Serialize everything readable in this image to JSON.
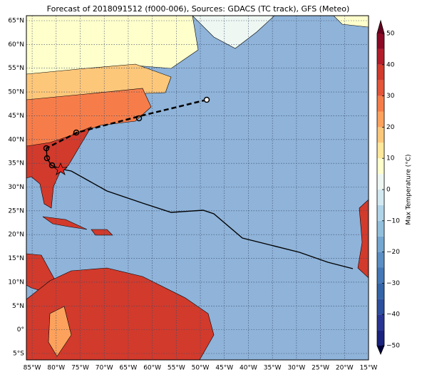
{
  "map": {
    "title": "Forecast of 2018091512 (f000-006), Sources: GDACS (TC track), GFS (Meteo)",
    "lon_range": [
      -86.2,
      -15
    ],
    "lat_range": [
      -6.35,
      66.05
    ],
    "lon_ticks": [
      {
        "value": -85,
        "label": "85°W"
      },
      {
        "value": -80,
        "label": "80°W"
      },
      {
        "value": -75,
        "label": "75°W"
      },
      {
        "value": -70,
        "label": "70°W"
      },
      {
        "value": -65,
        "label": "65°W"
      },
      {
        "value": -60,
        "label": "60°W"
      },
      {
        "value": -55,
        "label": "55°W"
      },
      {
        "value": -50,
        "label": "50°W"
      },
      {
        "value": -45,
        "label": "45°W"
      },
      {
        "value": -40,
        "label": "40°W"
      },
      {
        "value": -35,
        "label": "35°W"
      },
      {
        "value": -30,
        "label": "30°W"
      },
      {
        "value": -25,
        "label": "25°W"
      },
      {
        "value": -20,
        "label": "20°W"
      },
      {
        "value": -15,
        "label": "15°W"
      }
    ],
    "lat_ticks": [
      {
        "value": 65,
        "label": "65°N"
      },
      {
        "value": 60,
        "label": "60°N"
      },
      {
        "value": 55,
        "label": "55°N"
      },
      {
        "value": 50,
        "label": "50°N"
      },
      {
        "value": 45,
        "label": "45°N"
      },
      {
        "value": 40,
        "label": "40°N"
      },
      {
        "value": 35,
        "label": "35°N"
      },
      {
        "value": 30,
        "label": "30°N"
      },
      {
        "value": 25,
        "label": "25°N"
      },
      {
        "value": 20,
        "label": "20°N"
      },
      {
        "value": 15,
        "label": "15°N"
      },
      {
        "value": 10,
        "label": "10°N"
      },
      {
        "value": 5,
        "label": "5°N"
      },
      {
        "value": 0,
        "label": "0°"
      },
      {
        "value": -5,
        "label": "5°S"
      }
    ],
    "colorbar": {
      "label": "Max Temperature (°C)",
      "range": [
        -50,
        50
      ],
      "ticks": [
        {
          "value": -50,
          "label": "−50"
        },
        {
          "value": -40,
          "label": "−40"
        },
        {
          "value": -30,
          "label": "−30"
        },
        {
          "value": -20,
          "label": "−20"
        },
        {
          "value": -10,
          "label": "−10"
        },
        0,
        10,
        20,
        30,
        40,
        50
      ],
      "colors": [
        "#1a237e",
        "#283593",
        "#2c4f9e",
        "#3465a8",
        "#4478b6",
        "#5a8ec4",
        "#74a7d1",
        "#91bfdc",
        "#b0d4e8",
        "#d3e9f1",
        "#eef7f2",
        "#ffffcc",
        "#fee89a",
        "#fdc77a",
        "#fca25c",
        "#f67d4a",
        "#e4553a",
        "#d23a2c",
        "#b31d2a",
        "#8c0a26"
      ]
    }
  }
}
